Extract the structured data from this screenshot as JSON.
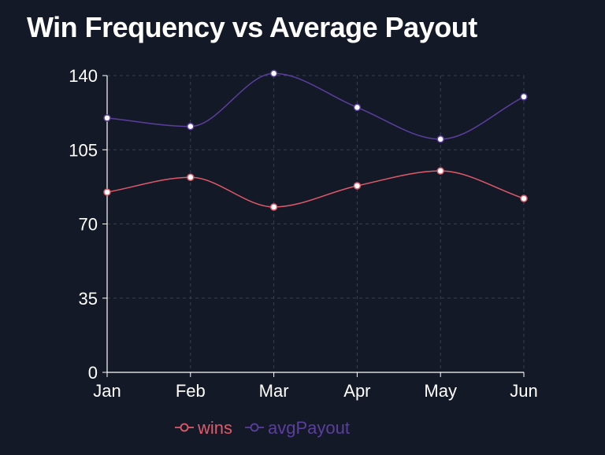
{
  "title": "Win Frequency vs Average Payout",
  "chart_data": {
    "type": "line",
    "title": "Win Frequency vs Average Payout",
    "xlabel": "",
    "ylabel": "",
    "categories": [
      "Jan",
      "Feb",
      "Mar",
      "Apr",
      "May",
      "Jun"
    ],
    "ylim": [
      0,
      140
    ],
    "yticks": [
      0,
      35,
      70,
      105,
      140
    ],
    "grid": true,
    "legend": "bottom",
    "series": [
      {
        "name": "wins",
        "color": "#e05a6a",
        "values": [
          85,
          92,
          78,
          88,
          95,
          82
        ]
      },
      {
        "name": "avgPayout",
        "color": "#5a3f9e",
        "values": [
          120,
          116,
          141,
          125,
          110,
          130
        ]
      }
    ]
  }
}
